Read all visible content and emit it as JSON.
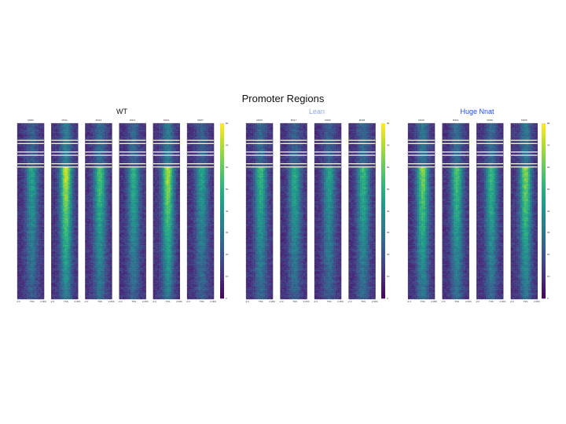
{
  "title": "Promoter Regions",
  "chart_data": {
    "type": "heatmap",
    "title": "Promoter Regions",
    "colormap": "viridis",
    "groups": [
      {
        "name": "WT",
        "color": "#111111",
        "samples": [
          "M306",
          "M311",
          "M313",
          "M314",
          "M321",
          "M327"
        ],
        "intensity": [
          0.45,
          0.8,
          0.6,
          0.5,
          0.75,
          0.45
        ]
      },
      {
        "name": "Lean",
        "color": "#8faadc",
        "samples": [
          "M316",
          "M317",
          "M326",
          "M306"
        ],
        "intensity": [
          0.55,
          0.5,
          0.45,
          0.55
        ]
      },
      {
        "name": "Huge Nnat",
        "color": "#1f4fd6",
        "samples": [
          "M316",
          "M316",
          "M330",
          "M306"
        ],
        "intensity": [
          0.7,
          0.6,
          0.55,
          0.7
        ]
      }
    ],
    "x_ticks": [
      "-2.0",
      "TSS",
      "2.0Kb"
    ],
    "colorbar_ticks": [
      "80",
      "70",
      "60",
      "50",
      "40",
      "30",
      "20",
      "10",
      "0"
    ]
  }
}
